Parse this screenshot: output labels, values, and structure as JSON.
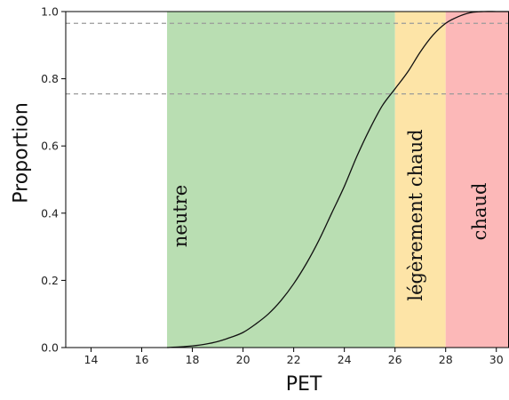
{
  "chart_data": {
    "type": "line",
    "title": "",
    "xlabel": "PET",
    "ylabel": "Proportion",
    "xlim": [
      13,
      30.5
    ],
    "ylim": [
      0,
      1
    ],
    "xticks": [
      14,
      16,
      18,
      20,
      22,
      24,
      26,
      28,
      30
    ],
    "yticks": [
      0.0,
      0.2,
      0.4,
      0.6,
      0.8,
      1.0
    ],
    "xtick_labels": [
      "14",
      "16",
      "18",
      "20",
      "22",
      "24",
      "26",
      "28",
      "30"
    ],
    "ytick_labels": [
      "0.0",
      "0.2",
      "0.4",
      "0.6",
      "0.8",
      "1.0"
    ],
    "grid": false,
    "zones": [
      {
        "label": "neutre",
        "x_start": 17,
        "x_end": 26,
        "color": "#b9deb2"
      },
      {
        "label": "légèrement chaud",
        "x_start": 26,
        "x_end": 28,
        "color": "#fde4a7"
      },
      {
        "label": "chaud",
        "x_start": 28,
        "x_end": 30.5,
        "color": "#fcb8b8"
      }
    ],
    "reference_lines": [
      {
        "y": 0.755,
        "style": "dashed",
        "color": "#9a9a9a"
      },
      {
        "y": 0.965,
        "style": "dashed",
        "color": "#9a9a9a"
      }
    ],
    "series": [
      {
        "color": "#111111",
        "x": [
          17.0,
          17.5,
          18.0,
          18.5,
          19.0,
          19.5,
          20.0,
          20.5,
          21.0,
          21.5,
          22.0,
          22.5,
          23.0,
          23.5,
          24.0,
          24.5,
          25.0,
          25.5,
          26.0,
          26.5,
          27.0,
          27.5,
          28.0,
          28.5,
          29.0,
          29.5,
          30.0,
          30.5
        ],
        "values": [
          0.0,
          0.002,
          0.005,
          0.01,
          0.018,
          0.03,
          0.045,
          0.07,
          0.1,
          0.14,
          0.19,
          0.25,
          0.32,
          0.4,
          0.48,
          0.57,
          0.65,
          0.72,
          0.77,
          0.82,
          0.88,
          0.93,
          0.965,
          0.985,
          0.997,
          1.0,
          1.0,
          1.0
        ]
      }
    ]
  }
}
